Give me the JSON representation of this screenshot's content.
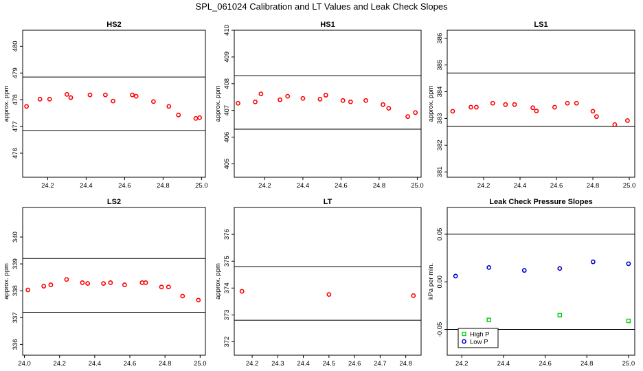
{
  "title": "SPL_061024  Calibration and LT Values and Leak Check Slopes",
  "colors": {
    "red": "#ff0000",
    "green": "#00cc00",
    "blue": "#0000cc"
  },
  "chart_data": [
    {
      "type": "scatter",
      "title": "HS2",
      "ylabel": "approx. ppm",
      "xlim": [
        24.07,
        25.02
      ],
      "ylim": [
        475.1,
        480.6
      ],
      "xticks": [
        24.2,
        24.4,
        24.6,
        24.8,
        25.0
      ],
      "yticks": [
        476,
        477,
        478,
        479,
        480
      ],
      "hlines": [
        476.85,
        478.85
      ],
      "series": [
        {
          "color": "#ff0000",
          "marker": "o",
          "x": [
            24.09,
            24.16,
            24.21,
            24.3,
            24.32,
            24.42,
            24.5,
            24.54,
            24.64,
            24.66,
            24.75,
            24.83,
            24.88,
            24.97,
            24.99
          ],
          "y": [
            477.75,
            478.02,
            478.02,
            478.2,
            478.08,
            478.18,
            478.18,
            477.95,
            478.18,
            478.13,
            477.93,
            477.75,
            477.43,
            477.3,
            477.33
          ]
        }
      ]
    },
    {
      "type": "scatter",
      "title": "HS1",
      "ylabel": "approx. ppm",
      "xlim": [
        24.04,
        25.02
      ],
      "ylim": [
        404.5,
        410.0
      ],
      "xticks": [
        24.2,
        24.4,
        24.6,
        24.8,
        25.0
      ],
      "yticks": [
        405,
        406,
        407,
        408,
        409,
        410
      ],
      "hlines": [
        406.3,
        408.3
      ],
      "series": [
        {
          "color": "#ff0000",
          "marker": "o",
          "x": [
            24.06,
            24.15,
            24.18,
            24.28,
            24.32,
            24.4,
            24.49,
            24.52,
            24.61,
            24.65,
            24.73,
            24.82,
            24.85,
            24.95,
            24.99
          ],
          "y": [
            407.27,
            407.32,
            407.62,
            407.4,
            407.53,
            407.45,
            407.42,
            407.57,
            407.37,
            407.32,
            407.37,
            407.22,
            407.08,
            406.77,
            406.92
          ]
        }
      ]
    },
    {
      "type": "scatter",
      "title": "LS1",
      "ylabel": "approx. ppm",
      "xlim": [
        24.0,
        25.03
      ],
      "ylim": [
        380.8,
        386.3
      ],
      "xticks": [
        24.2,
        24.4,
        24.6,
        24.8,
        25.0
      ],
      "yticks": [
        381,
        382,
        383,
        384,
        385,
        386
      ],
      "hlines": [
        382.7,
        384.7
      ],
      "series": [
        {
          "color": "#ff0000",
          "marker": "o",
          "x": [
            24.03,
            24.13,
            24.16,
            24.25,
            24.32,
            24.37,
            24.47,
            24.49,
            24.59,
            24.66,
            24.71,
            24.8,
            24.82,
            24.92,
            24.99
          ],
          "y": [
            383.27,
            383.42,
            383.42,
            383.57,
            383.52,
            383.52,
            383.4,
            383.28,
            383.42,
            383.57,
            383.57,
            383.27,
            383.07,
            382.77,
            382.92
          ]
        }
      ]
    },
    {
      "type": "scatter",
      "title": "LS2",
      "ylabel": "approx. ppm",
      "xlim": [
        23.99,
        25.03
      ],
      "ylim": [
        335.6,
        341.1
      ],
      "xticks": [
        24.0,
        24.2,
        24.4,
        24.6,
        24.8,
        25.0
      ],
      "yticks": [
        336,
        337,
        338,
        339,
        340
      ],
      "hlines": [
        337.2,
        339.2
      ],
      "series": [
        {
          "color": "#ff0000",
          "marker": "o",
          "x": [
            24.02,
            24.11,
            24.15,
            24.24,
            24.33,
            24.36,
            24.45,
            24.49,
            24.57,
            24.67,
            24.69,
            24.78,
            24.82,
            24.9,
            24.99
          ],
          "y": [
            338.03,
            338.17,
            338.22,
            338.42,
            338.3,
            338.27,
            338.27,
            338.3,
            338.22,
            338.3,
            338.3,
            338.14,
            338.14,
            337.8,
            337.65
          ]
        }
      ]
    },
    {
      "type": "scatter",
      "title": "LT",
      "ylabel": "approx. ppm",
      "xlim": [
        24.13,
        24.86
      ],
      "ylim": [
        371.5,
        377.0
      ],
      "xticks": [
        24.2,
        24.3,
        24.4,
        24.5,
        24.6,
        24.7,
        24.8
      ],
      "yticks": [
        372,
        373,
        374,
        375,
        376
      ],
      "hlines": [
        372.8,
        374.8
      ],
      "series": [
        {
          "color": "#ff0000",
          "marker": "o",
          "x": [
            24.16,
            24.5,
            24.83
          ],
          "y": [
            373.88,
            373.76,
            373.72
          ]
        }
      ]
    },
    {
      "type": "scatter",
      "title": "Leak Check Pressure Slopes",
      "ylabel": "kPa per min.",
      "xlim": [
        24.13,
        25.03
      ],
      "ylim": [
        -0.077,
        0.078
      ],
      "xticks": [
        24.2,
        24.4,
        24.6,
        24.8,
        25.0
      ],
      "yticks": [
        -0.05,
        0.0,
        0.05
      ],
      "ytick_labels": [
        "-0.05",
        "0.00",
        "0.05"
      ],
      "hlines": [
        -0.05,
        0.05
      ],
      "legend": "bottom-left",
      "series": [
        {
          "name": "High P",
          "color": "#00cc00",
          "marker": "square",
          "x": [
            24.33,
            24.67,
            25.0
          ],
          "y": [
            -0.04,
            -0.035,
            -0.041
          ]
        },
        {
          "name": "Low P",
          "color": "#0000cc",
          "marker": "o",
          "x": [
            24.17,
            24.33,
            24.5,
            24.67,
            24.83,
            25.0
          ],
          "y": [
            0.006,
            0.015,
            0.012,
            0.014,
            0.021,
            0.019
          ]
        }
      ]
    }
  ]
}
